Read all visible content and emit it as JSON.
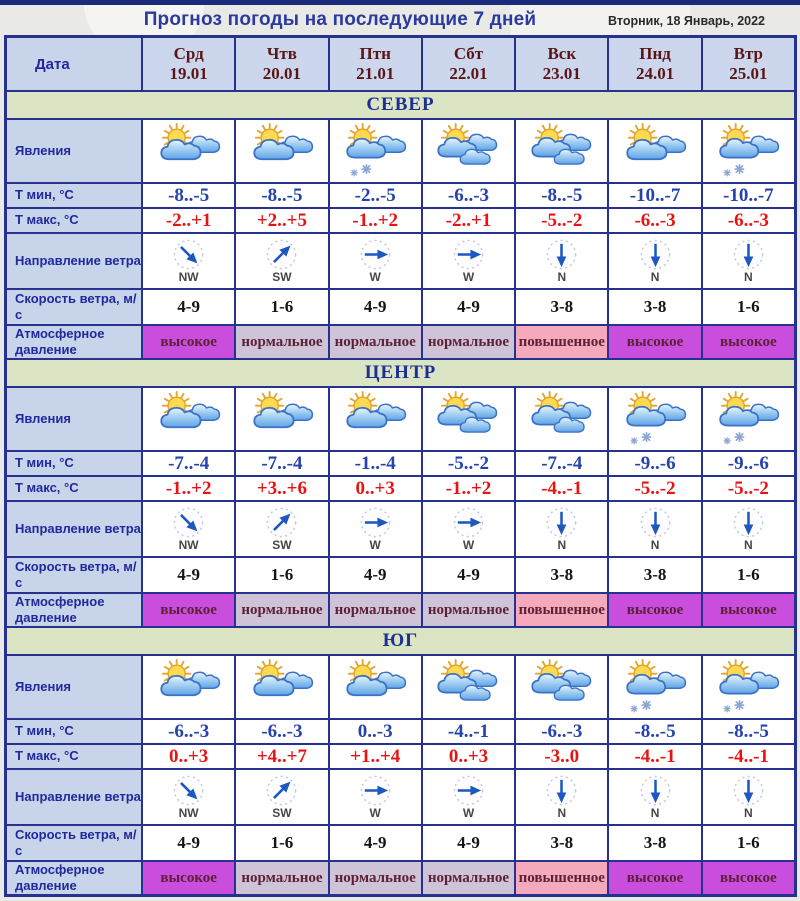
{
  "title": "Прогноз погоды на последующие 7 дней",
  "date_label": "Вторник, 18 Январь, 2022",
  "header": {
    "date_col": "Дата",
    "days": [
      {
        "name": "Срд",
        "date": "19.01"
      },
      {
        "name": "Чтв",
        "date": "20.01"
      },
      {
        "name": "Птн",
        "date": "21.01"
      },
      {
        "name": "Сбт",
        "date": "22.01"
      },
      {
        "name": "Вск",
        "date": "23.01"
      },
      {
        "name": "Пнд",
        "date": "24.01"
      },
      {
        "name": "Втр",
        "date": "25.01"
      }
    ]
  },
  "row_labels": {
    "phenomena": "Явления",
    "tmin": "Т мин, °С",
    "tmax": "Т макс, °С",
    "wind_dir": "Направление ветра",
    "wind_speed": "Скорость ветра, м/с",
    "pressure": "Атмосферное давление"
  },
  "sections": [
    {
      "name": "СЕВЕР",
      "icons": [
        "sun-clouds",
        "sun-clouds",
        "sun-clouds-snow",
        "sun-overcast",
        "sun-overcast",
        "sun-clouds",
        "sun-clouds-snow"
      ],
      "tmin": [
        "-8..-5",
        "-8..-5",
        "-2..-5",
        "-6..-3",
        "-8..-5",
        "-10..-7",
        "-10..-7"
      ],
      "tmax": [
        "-2..+1",
        "+2..+5",
        "-1..+2",
        "-2..+1",
        "-5..-2",
        "-6..-3",
        "-6..-3"
      ],
      "wind_dir": [
        "NW",
        "SW",
        "W",
        "W",
        "N",
        "N",
        "N"
      ],
      "wind_speed": [
        "4-9",
        "1-6",
        "4-9",
        "4-9",
        "3-8",
        "3-8",
        "1-6"
      ],
      "pressure": [
        "высокое",
        "нормальное",
        "нормальное",
        "нормальное",
        "повышенное",
        "высокое",
        "высокое"
      ]
    },
    {
      "name": "ЦЕНТР",
      "icons": [
        "sun-clouds",
        "sun-clouds",
        "sun-clouds",
        "sun-overcast",
        "sun-overcast",
        "sun-clouds-snow",
        "sun-clouds-snow"
      ],
      "tmin": [
        "-7..-4",
        "-7..-4",
        "-1..-4",
        "-5..-2",
        "-7..-4",
        "-9..-6",
        "-9..-6"
      ],
      "tmax": [
        "-1..+2",
        "+3..+6",
        "0..+3",
        "-1..+2",
        "-4..-1",
        "-5..-2",
        "-5..-2"
      ],
      "wind_dir": [
        "NW",
        "SW",
        "W",
        "W",
        "N",
        "N",
        "N"
      ],
      "wind_speed": [
        "4-9",
        "1-6",
        "4-9",
        "4-9",
        "3-8",
        "3-8",
        "1-6"
      ],
      "pressure": [
        "высокое",
        "нормальное",
        "нормальное",
        "нормальное",
        "повышенное",
        "высокое",
        "высокое"
      ]
    },
    {
      "name": "ЮГ",
      "icons": [
        "sun-clouds",
        "sun-clouds",
        "sun-clouds",
        "sun-overcast",
        "sun-overcast",
        "sun-clouds-snow",
        "sun-clouds-snow"
      ],
      "tmin": [
        "-6..-3",
        "-6..-3",
        "0..-3",
        "-4..-1",
        "-6..-3",
        "-8..-5",
        "-8..-5"
      ],
      "tmax": [
        "0..+3",
        "+4..+7",
        "+1..+4",
        "0..+3",
        "-3..0",
        "-4..-1",
        "-4..-1"
      ],
      "wind_dir": [
        "NW",
        "SW",
        "W",
        "W",
        "N",
        "N",
        "N"
      ],
      "wind_speed": [
        "4-9",
        "1-6",
        "4-9",
        "4-9",
        "3-8",
        "3-8",
        "1-6"
      ],
      "pressure": [
        "высокое",
        "нормальное",
        "нормальное",
        "нормальное",
        "повышенное",
        "высокое",
        "высокое"
      ]
    }
  ],
  "colors": {
    "border_navy": "#26328e",
    "label_bg": "#c7d4ea",
    "header_bg": "#ccd7ee",
    "section_bg": "#dce5c3",
    "tmin_text": "#2443ad",
    "tmax_text": "#e81414",
    "day_text": "#5a1515",
    "pressure_text": "#5c2135",
    "pressure_colors": {
      "высокое": "#c94edd",
      "нормальное": "#cfc3d8",
      "повышенное": "#f4a9bd"
    }
  }
}
